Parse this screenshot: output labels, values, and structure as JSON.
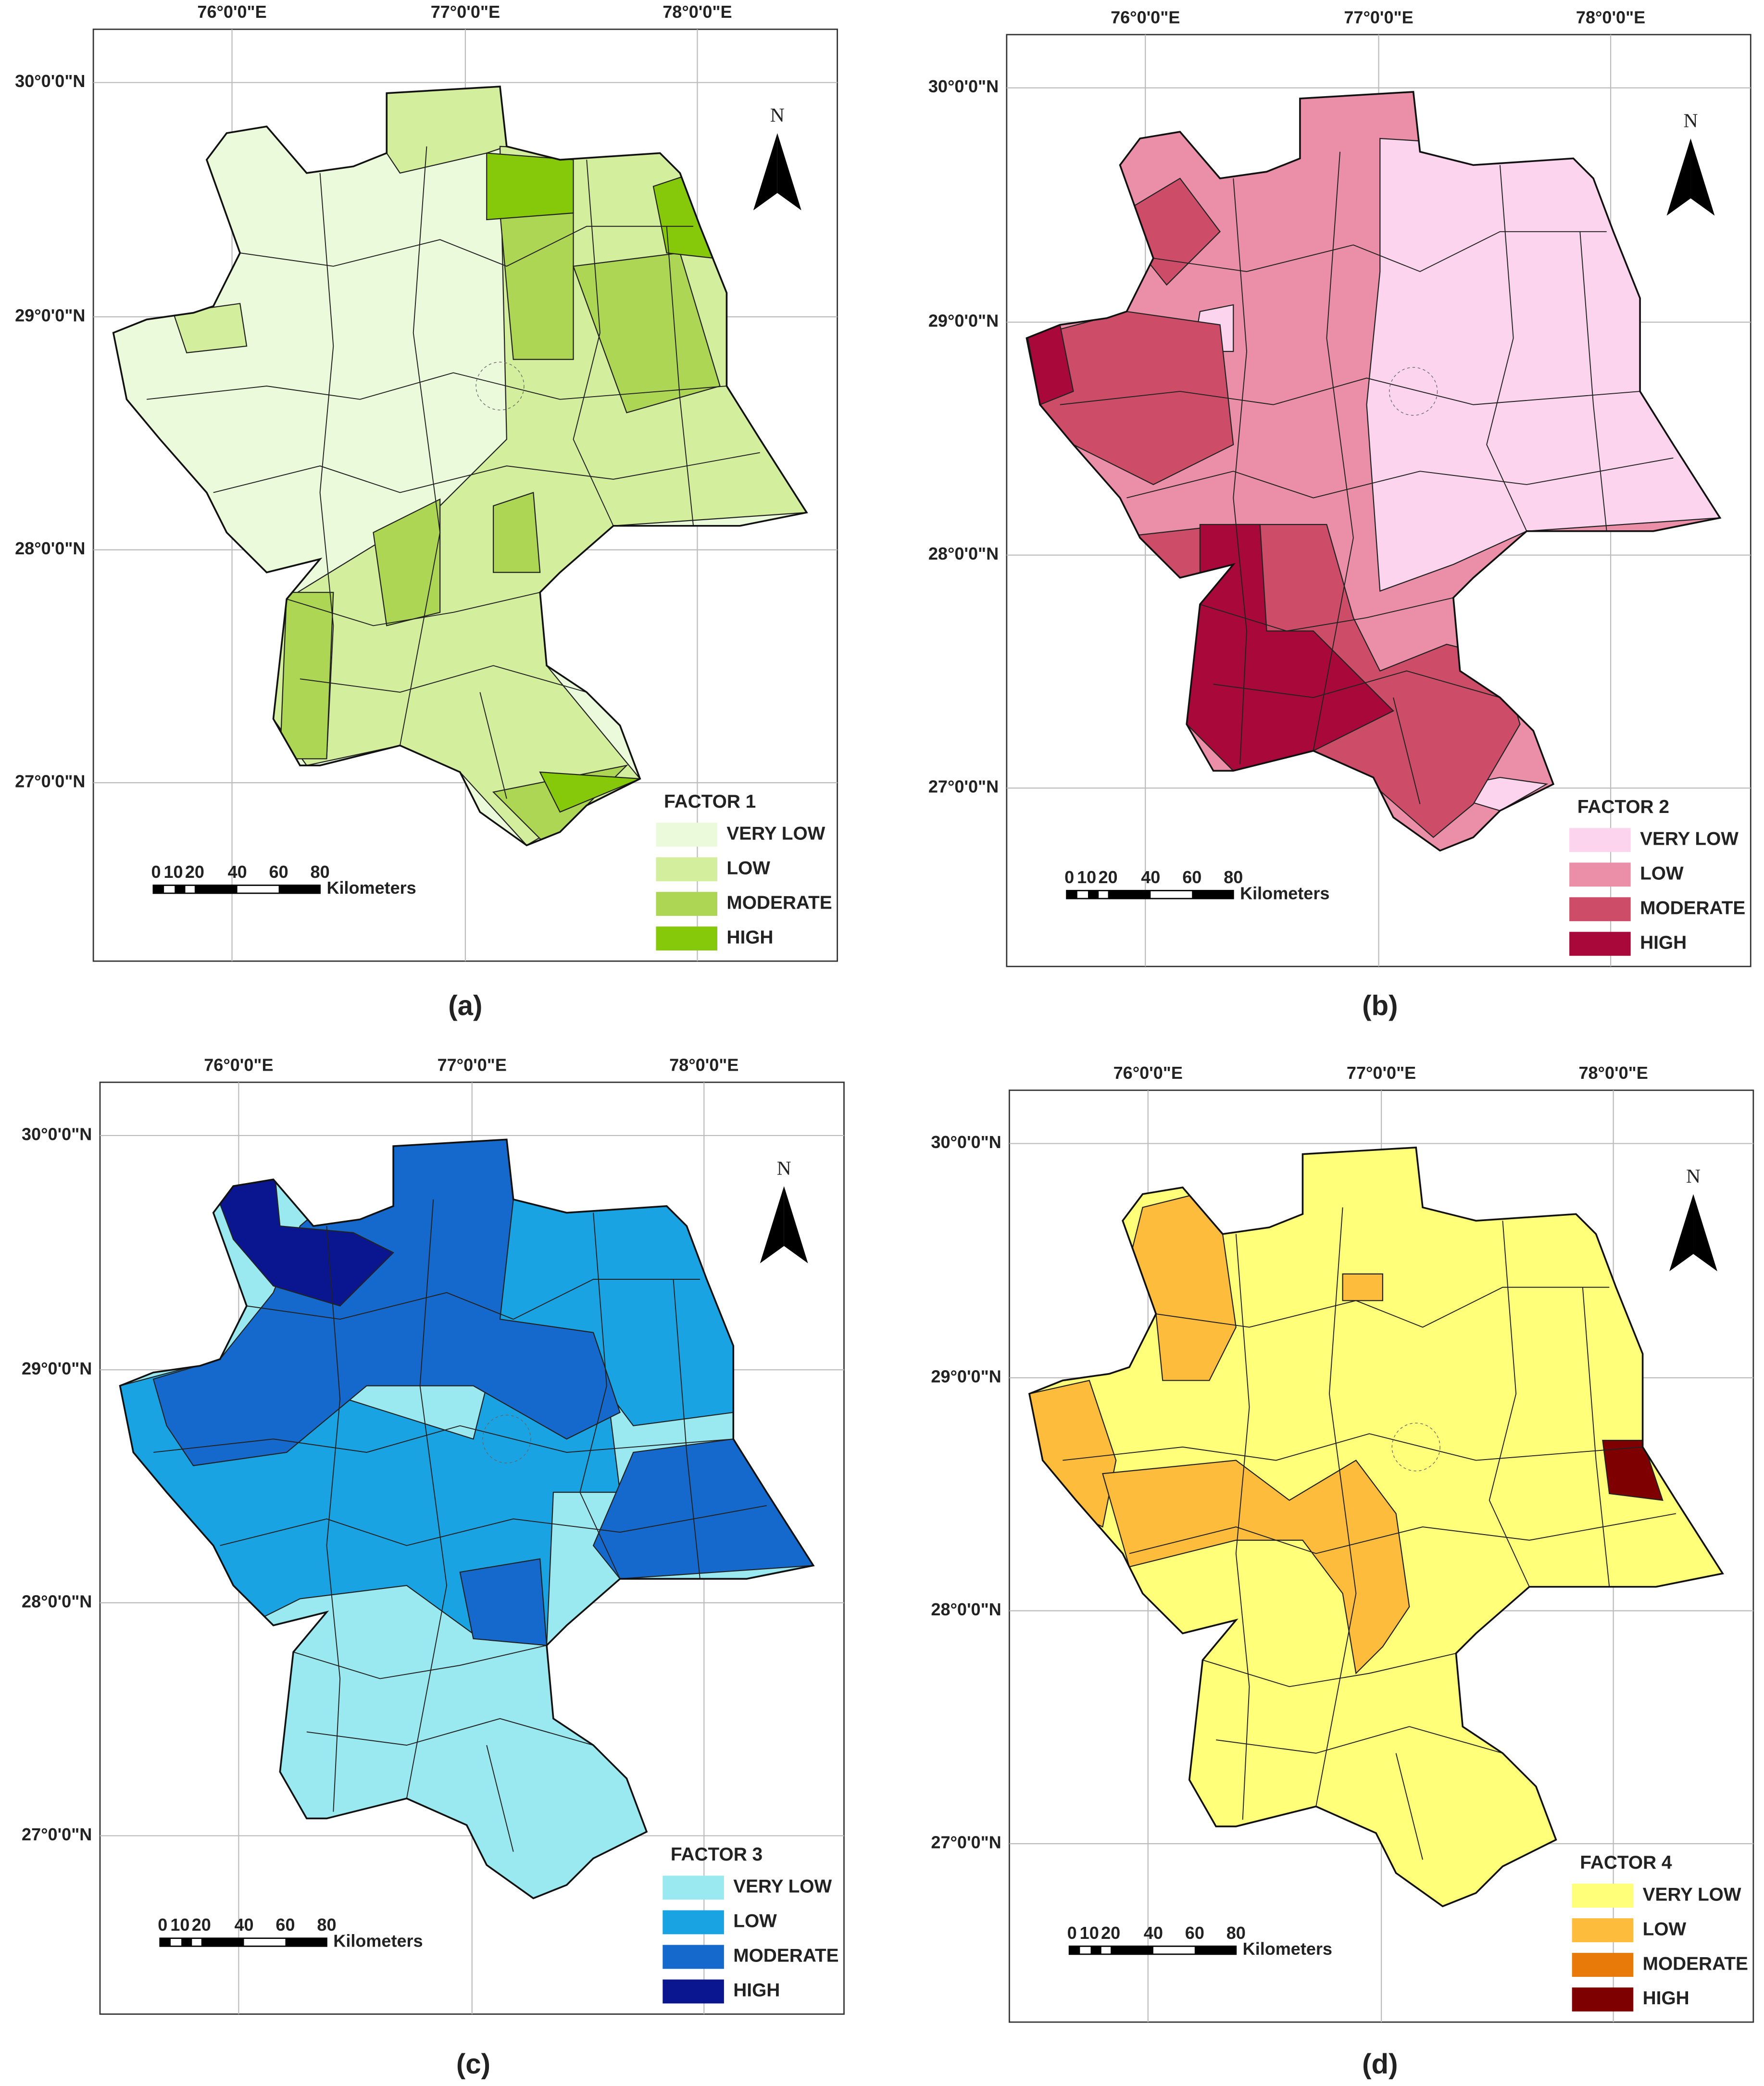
{
  "panels": [
    {
      "caption": "(a)",
      "legend_title": "FACTOR 1",
      "classes": [
        {
          "label": "VERY LOW",
          "color": "#ebfadb"
        },
        {
          "label": "LOW",
          "color": "#d3ee9c"
        },
        {
          "label": "MODERATE",
          "color": "#acd653"
        },
        {
          "label": "HIGH",
          "color": "#86c90a"
        }
      ]
    },
    {
      "caption": "(b)",
      "legend_title": "FACTOR 2",
      "classes": [
        {
          "label": "VERY LOW",
          "color": "#fcd4ee"
        },
        {
          "label": "LOW",
          "color": "#eb8fa8"
        },
        {
          "label": "MODERATE",
          "color": "#cd4d68"
        },
        {
          "label": "HIGH",
          "color": "#a8083a"
        }
      ]
    },
    {
      "caption": "(c)",
      "legend_title": "FACTOR 3",
      "classes": [
        {
          "label": "VERY LOW",
          "color": "#9ae9f0"
        },
        {
          "label": "LOW",
          "color": "#1aa3e3"
        },
        {
          "label": "MODERATE",
          "color": "#1568cc"
        },
        {
          "label": "HIGH",
          "color": "#0a1690"
        }
      ]
    },
    {
      "caption": "(d)",
      "legend_title": "FACTOR 4",
      "classes": [
        {
          "label": "VERY LOW",
          "color": "#ffff7a"
        },
        {
          "label": "LOW",
          "color": "#fdbc3b"
        },
        {
          "label": "MODERATE",
          "color": "#e87a0a"
        },
        {
          "label": "HIGH",
          "color": "#7e0000"
        }
      ]
    }
  ],
  "longitude_labels": [
    "76°0'0\"E",
    "77°0'0\"E",
    "78°0'0\"E"
  ],
  "latitude_labels": [
    "30°0'0\"N",
    "29°0'0\"N",
    "28°0'0\"N",
    "27°0'0\"N"
  ],
  "north_label": "N",
  "scale_labels": [
    "0",
    "10",
    "20",
    "40",
    "60",
    "80"
  ],
  "scale_unit": "Kilometers"
}
